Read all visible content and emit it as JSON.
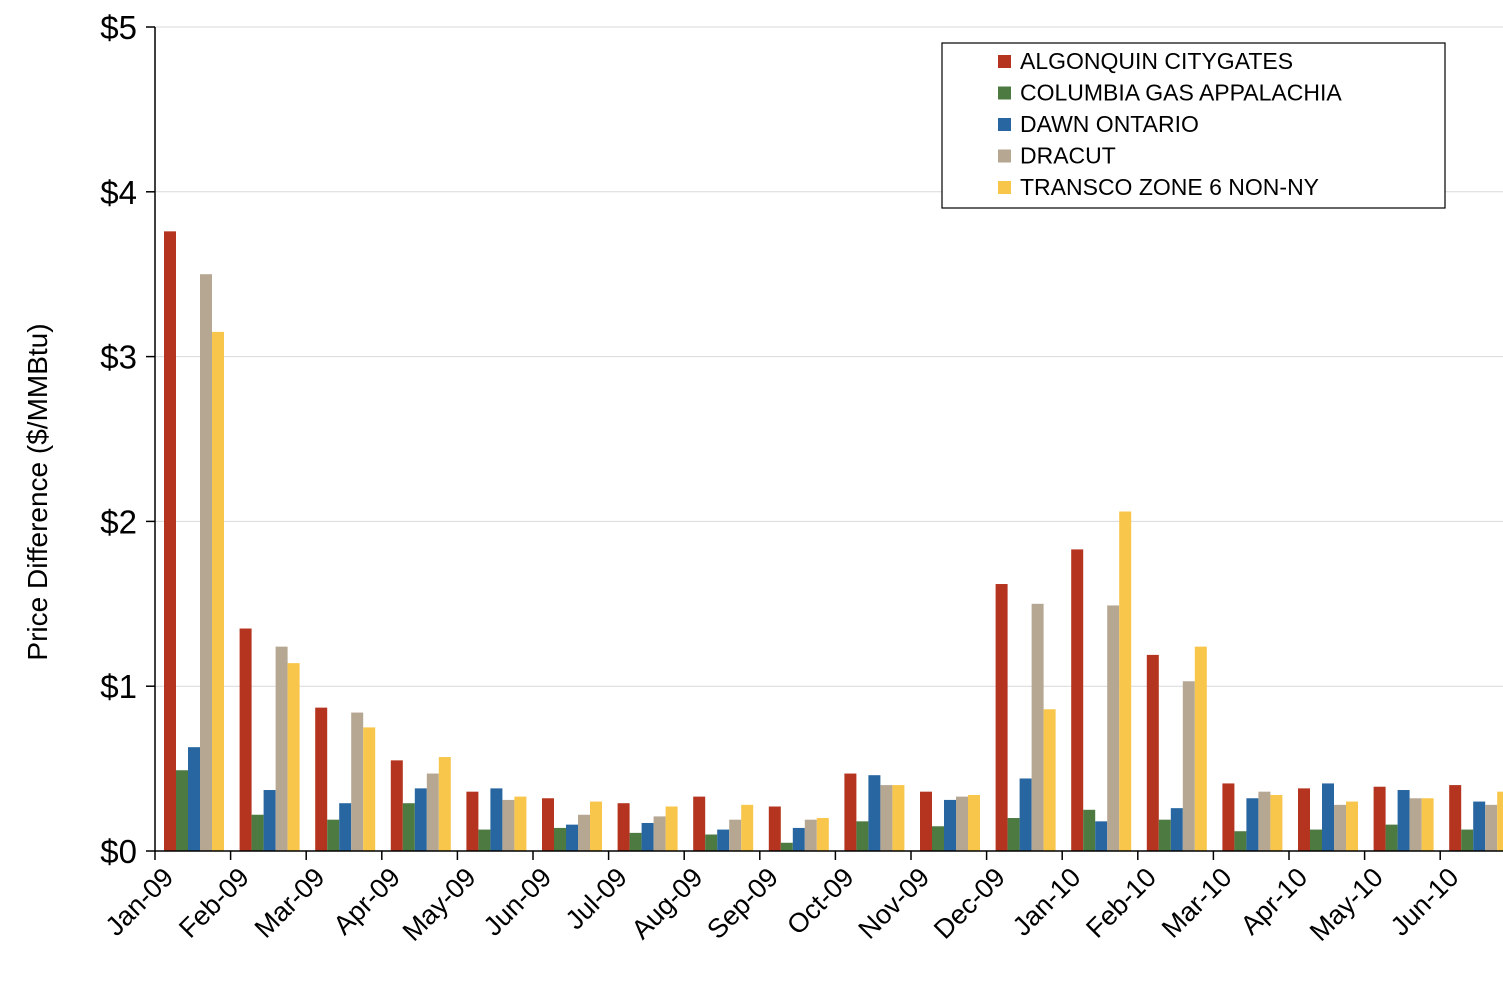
{
  "chart_data": {
    "type": "bar",
    "title": "",
    "xlabel": "",
    "ylabel": "Price Difference  ($/MMBtu)",
    "ylim": [
      0,
      5
    ],
    "y_ticks": [
      0,
      1,
      2,
      3,
      4,
      5
    ],
    "y_tick_labels": [
      "$0",
      "$1",
      "$2",
      "$3",
      "$4",
      "$5"
    ],
    "grid": true,
    "legend_position": "top-right",
    "categories": [
      "Jan-09",
      "Feb-09",
      "Mar-09",
      "Apr-09",
      "May-09",
      "Jun-09",
      "Jul-09",
      "Aug-09",
      "Sep-09",
      "Oct-09",
      "Nov-09",
      "Dec-09",
      "Jan-10",
      "Feb-10",
      "Mar-10",
      "Apr-10",
      "May-10",
      "Jun-10"
    ],
    "series": [
      {
        "name": "ALGONQUIN CITYGATES",
        "color": "#B5341F",
        "values": [
          3.76,
          1.35,
          0.87,
          0.55,
          0.36,
          0.32,
          0.29,
          0.33,
          0.27,
          0.47,
          0.36,
          1.62,
          1.83,
          1.19,
          0.41,
          0.38,
          0.39,
          0.4
        ]
      },
      {
        "name": "COLUMBIA GAS APPALACHIA",
        "color": "#4C7A41",
        "values": [
          0.49,
          0.22,
          0.19,
          0.29,
          0.13,
          0.14,
          0.11,
          0.1,
          0.05,
          0.18,
          0.15,
          0.2,
          0.25,
          0.19,
          0.12,
          0.13,
          0.16,
          0.13
        ]
      },
      {
        "name": "DAWN ONTARIO",
        "color": "#2766A0",
        "values": [
          0.63,
          0.37,
          0.29,
          0.38,
          0.38,
          0.16,
          0.17,
          0.13,
          0.14,
          0.46,
          0.31,
          0.44,
          0.18,
          0.26,
          0.32,
          0.41,
          0.37,
          0.3
        ]
      },
      {
        "name": "DRACUT",
        "color": "#B6A793",
        "values": [
          3.5,
          1.24,
          0.84,
          0.47,
          0.31,
          0.22,
          0.21,
          0.19,
          0.19,
          0.4,
          0.33,
          1.5,
          1.49,
          1.03,
          0.36,
          0.28,
          0.32,
          0.28
        ]
      },
      {
        "name": "TRANSCO ZONE 6 NON-NY",
        "color": "#F7C64A",
        "values": [
          3.15,
          1.14,
          0.75,
          0.57,
          0.33,
          0.3,
          0.27,
          0.28,
          0.2,
          0.4,
          0.34,
          0.86,
          2.06,
          1.24,
          0.34,
          0.3,
          0.32,
          0.36
        ]
      }
    ]
  }
}
